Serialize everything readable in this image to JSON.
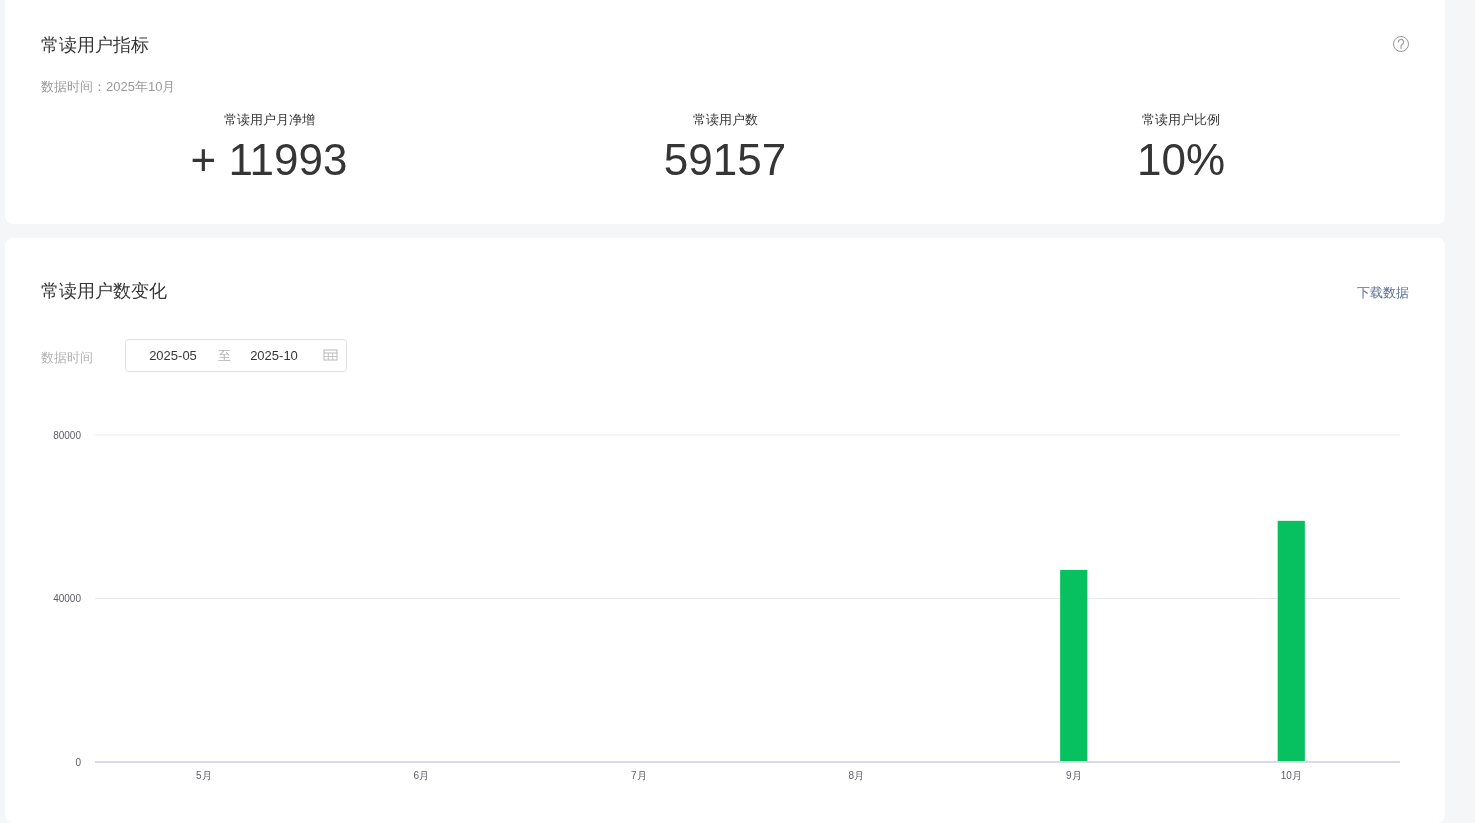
{
  "chart_data": [
    {
      "type": "other",
      "title": "常读用户指标",
      "subtitle": "数据时间：2025年10月",
      "annotations": [
        "常读用户月净增",
        "+ 11993",
        "常读用户数",
        "59157",
        "常读用户比例",
        "10%"
      ]
    },
    {
      "type": "bar",
      "title": "常读用户数变化",
      "annotations": [
        "下载数据",
        "数据时间",
        "2025-05",
        "至",
        "2025-10"
      ],
      "categories": [
        "5月",
        "6月",
        "7月",
        "8月",
        "9月",
        "10月"
      ],
      "values": [
        null,
        null,
        null,
        null,
        47000,
        59000
      ],
      "color": "#07c160",
      "ylim": [
        0,
        80000
      ],
      "yticks": [
        0,
        40000,
        80000
      ],
      "grid": "y"
    }
  ]
}
